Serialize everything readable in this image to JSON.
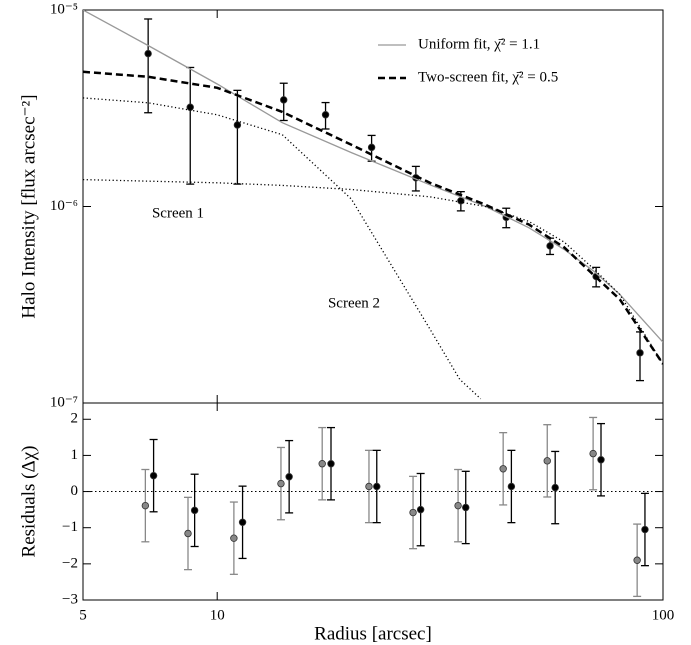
{
  "chart_data": [
    {
      "type": "line",
      "ylabel": "Halo Intensity [flux arcsec⁻²]",
      "xlim": [
        5,
        100
      ],
      "ylim": [
        1e-07,
        1e-05
      ],
      "xscale": "log",
      "yscale": "log",
      "xticks": [
        5,
        10,
        100
      ],
      "xticklabels": false,
      "yticks": [
        {
          "value": 1e-07,
          "label": "10⁻⁷"
        },
        {
          "value": 1e-06,
          "label": "10⁻⁶"
        },
        {
          "value": 1e-05,
          "label": "10⁻⁵"
        }
      ],
      "legend": "upper right",
      "annotations": [
        "Screen 1",
        "Screen 2"
      ],
      "series": [
        {
          "name": "Uniform fit, χ̄² = 1.1",
          "style": "solid",
          "color": "#999999",
          "x": [
            5,
            7,
            10,
            14,
            20,
            30,
            40,
            50,
            60,
            70,
            80,
            100
          ],
          "values": [
            1e-05,
            6.6e-06,
            4.2e-06,
            2.67e-06,
            1.88e-06,
            1.29e-06,
            1e-06,
            7.8e-07,
            6.05e-07,
            4.68e-07,
            3.57e-07,
            2.04e-07
          ]
        },
        {
          "name": "Two-screen fit, χ̄² = 0.5",
          "style": "dashed",
          "color": "#000000",
          "x": [
            5,
            7,
            10,
            14,
            20,
            30,
            40,
            50,
            60,
            70,
            80,
            100
          ],
          "values": [
            4.85e-06,
            4.57e-06,
            4.02e-06,
            3.03e-06,
            2.06e-06,
            1.32e-06,
            1.02e-06,
            8.1e-07,
            6.2e-07,
            4.47e-07,
            3.37e-07,
            1.58e-07
          ]
        },
        {
          "style": "dotted",
          "color": "#000000",
          "x": [
            5,
            7,
            10,
            14,
            20,
            30,
            35,
            39
          ],
          "values": [
            3.57e-06,
            3.37e-06,
            2.93e-06,
            2.32e-06,
            1.09e-06,
            2.38e-07,
            1.32e-07,
            1.05e-07
          ]
        },
        {
          "style": "dotted",
          "color": "#000000",
          "x": [
            5,
            10,
            14,
            20,
            30,
            40,
            50,
            60,
            70,
            80,
            100
          ],
          "values": [
            1.37e-06,
            1.32e-06,
            1.28e-06,
            1.22e-06,
            1.12e-06,
            1e-06,
            8.4e-07,
            6.6e-07,
            4.8e-07,
            3.57e-07,
            1.58e-07
          ]
        },
        {
          "style": "points",
          "color": "#000000",
          "x": [
            7.0,
            8.7,
            11.1,
            14.1,
            17.5,
            22.2,
            27.9,
            35.2,
            44.5,
            55.8,
            70.8,
            88.8
          ],
          "values": [
            6e-06,
            3.2e-06,
            2.6e-06,
            3.49e-06,
            2.93e-06,
            2e-06,
            1.4e-06,
            1.07e-06,
            8.8e-07,
            6.3e-07,
            4.4e-07,
            1.8e-07
          ],
          "errors": [
            3e-06,
            1.9e-06,
            1.3e-06,
            7.5e-07,
            4.5e-07,
            3e-07,
            2e-07,
            1.2e-07,
            1e-07,
            6e-08,
            5e-08,
            5e-08
          ]
        }
      ]
    },
    {
      "type": "scatter",
      "xlabel": "Radius [arcsec]",
      "ylabel": "Residuals (Δχ)",
      "xlim": [
        5,
        100
      ],
      "ylim": [
        -3,
        2.45
      ],
      "xscale": "log",
      "xticks": [
        5,
        10,
        100
      ],
      "yticks": [
        {
          "value": -3,
          "label": "−3"
        },
        {
          "value": -2,
          "label": "−2"
        },
        {
          "value": -1,
          "label": "−1"
        },
        0,
        1,
        2
      ],
      "hline": 0,
      "series": [
        {
          "color": "#888888",
          "x": [
            6.9,
            8.6,
            10.9,
            13.9,
            17.2,
            21.9,
            27.5,
            34.7,
            43.8,
            55.0,
            69.7,
            87.5
          ],
          "values": [
            -0.39,
            -1.16,
            -1.29,
            0.22,
            0.77,
            0.14,
            -0.58,
            -0.39,
            0.63,
            0.85,
            1.05,
            -1.9
          ],
          "errors": [
            1,
            1,
            1,
            1,
            1,
            1,
            1,
            1,
            1,
            1,
            1,
            1
          ]
        },
        {
          "color": "#000000",
          "x": [
            7.2,
            8.9,
            11.4,
            14.5,
            18.0,
            22.8,
            28.6,
            36.1,
            45.7,
            57.3,
            72.6,
            91.1
          ],
          "values": [
            0.44,
            -0.52,
            -0.85,
            0.41,
            0.77,
            0.14,
            -0.5,
            -0.44,
            0.14,
            0.11,
            0.88,
            -1.05
          ],
          "errors": [
            1,
            1,
            1,
            1,
            1,
            1,
            1,
            1,
            1,
            1,
            1,
            1
          ]
        }
      ]
    }
  ]
}
